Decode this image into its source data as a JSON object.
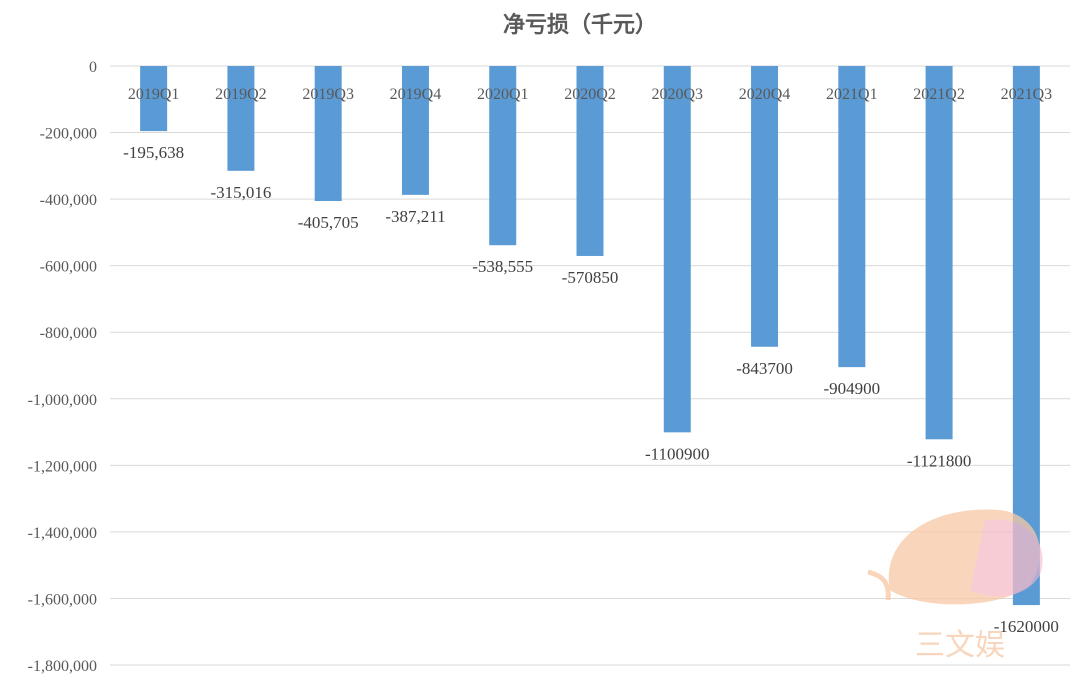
{
  "chart_data": {
    "type": "bar",
    "title": "净亏损（千元）",
    "xlabel": "",
    "ylabel": "",
    "categories": [
      "2019Q1",
      "2019Q2",
      "2019Q3",
      "2019Q4",
      "2020Q1",
      "2020Q2",
      "2020Q3",
      "2020Q4",
      "2021Q1",
      "2021Q2",
      "2021Q3"
    ],
    "values": [
      -195638,
      -315016,
      -405705,
      -387211,
      -538555,
      -570850,
      -1100900,
      -843700,
      -904900,
      -1121800,
      -1620000
    ],
    "data_labels": [
      "-195,638",
      "-315,016",
      "-405,705",
      "-387,211",
      "-538,555",
      "-570850",
      "-1100900",
      "-843700",
      "-904900",
      "-1121800",
      "-1620000"
    ],
    "ylim": [
      -1800000,
      0
    ],
    "yticks": [
      0,
      -200000,
      -400000,
      -600000,
      -800000,
      -1000000,
      -1200000,
      -1400000,
      -1600000,
      -1800000
    ],
    "ytick_labels": [
      "0",
      "-200,000",
      "-400,000",
      "-600,000",
      "-800,000",
      "-1,000,000",
      "-1,200,000",
      "-1,400,000",
      "-1,600,000",
      "-1,800,000"
    ],
    "grid": true,
    "bar_color": "#5b9bd5"
  },
  "watermark": {
    "text": "三文娱"
  }
}
